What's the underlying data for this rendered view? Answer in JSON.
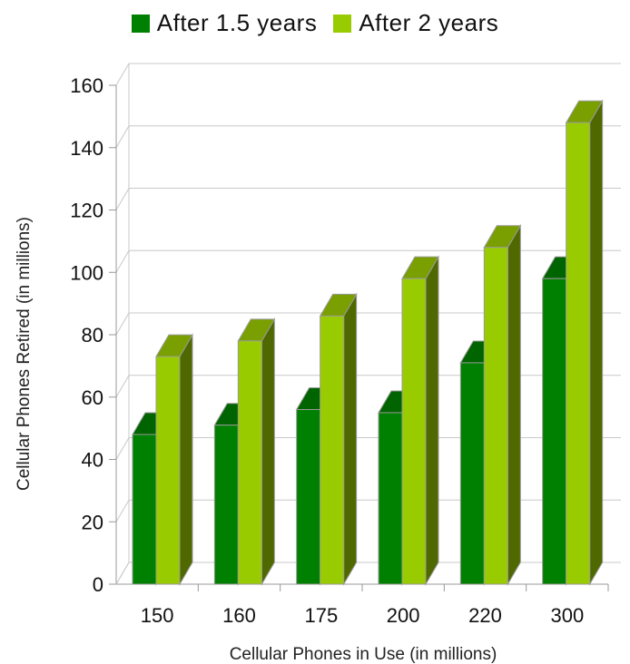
{
  "chart_data": {
    "type": "bar",
    "style": "3d-clustered-column",
    "categories": [
      "150",
      "160",
      "175",
      "200",
      "220",
      "300"
    ],
    "series": [
      {
        "name": "After 1.5 years",
        "values": [
          48,
          51,
          56,
          55,
          71,
          98
        ],
        "color": "#008000",
        "side_color": "#4f6800",
        "top_color": "#006400"
      },
      {
        "name": "After 2 years",
        "values": [
          73,
          78,
          86,
          98,
          108,
          148
        ],
        "color": "#99cc00",
        "side_color": "#4f6800",
        "top_color": "#7a9f00"
      }
    ],
    "xlabel": "Cellular Phones in Use (in millions)",
    "ylabel": "Cellular Phones Retired (in millions)",
    "ylim": [
      0,
      160
    ],
    "yticks": [
      "0",
      "20",
      "40",
      "60",
      "80",
      "100",
      "120",
      "140",
      "160"
    ],
    "grid": true,
    "legend_position": "top"
  }
}
